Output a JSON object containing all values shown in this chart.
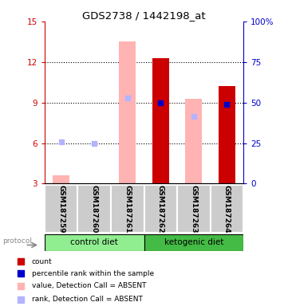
{
  "title": "GDS2738 / 1442198_at",
  "samples": [
    "GSM187259",
    "GSM187260",
    "GSM187261",
    "GSM187262",
    "GSM187263",
    "GSM187264"
  ],
  "group_labels": [
    "control diet",
    "ketogenic diet"
  ],
  "ylim_left": [
    3,
    15
  ],
  "ylim_right": [
    0,
    100
  ],
  "yticks_left": [
    3,
    6,
    9,
    12,
    15
  ],
  "yticks_right": [
    0,
    25,
    50,
    75,
    100
  ],
  "left_tick_labels": [
    "3",
    "6",
    "9",
    "12",
    "15"
  ],
  "right_tick_labels": [
    "0",
    "25",
    "50",
    "75",
    "100%"
  ],
  "count_values": [
    3.05,
    3.05,
    3.05,
    12.3,
    3.05,
    10.2
  ],
  "rank_values": [
    6.1,
    6.0,
    9.35,
    9.0,
    8.0,
    8.85
  ],
  "value_absent": [
    3.6,
    3.05,
    13.5,
    3.05,
    9.3,
    3.05
  ],
  "rank_absent": [
    6.1,
    6.0,
    9.35,
    3.05,
    8.0,
    3.05
  ],
  "absent_flags": [
    true,
    true,
    true,
    false,
    true,
    false
  ],
  "color_count": "#cc0000",
  "color_rank": "#0000cc",
  "color_value_absent": "#ffb3b3",
  "color_rank_absent": "#b3b3ff",
  "bar_width": 0.5,
  "bg_color": "#ffffff",
  "left_label_color": "#cc0000",
  "right_label_color": "#0000cc",
  "sample_box_color": "#cccccc",
  "group_color_control": "#90ee90",
  "group_color_keto": "#44bb44"
}
